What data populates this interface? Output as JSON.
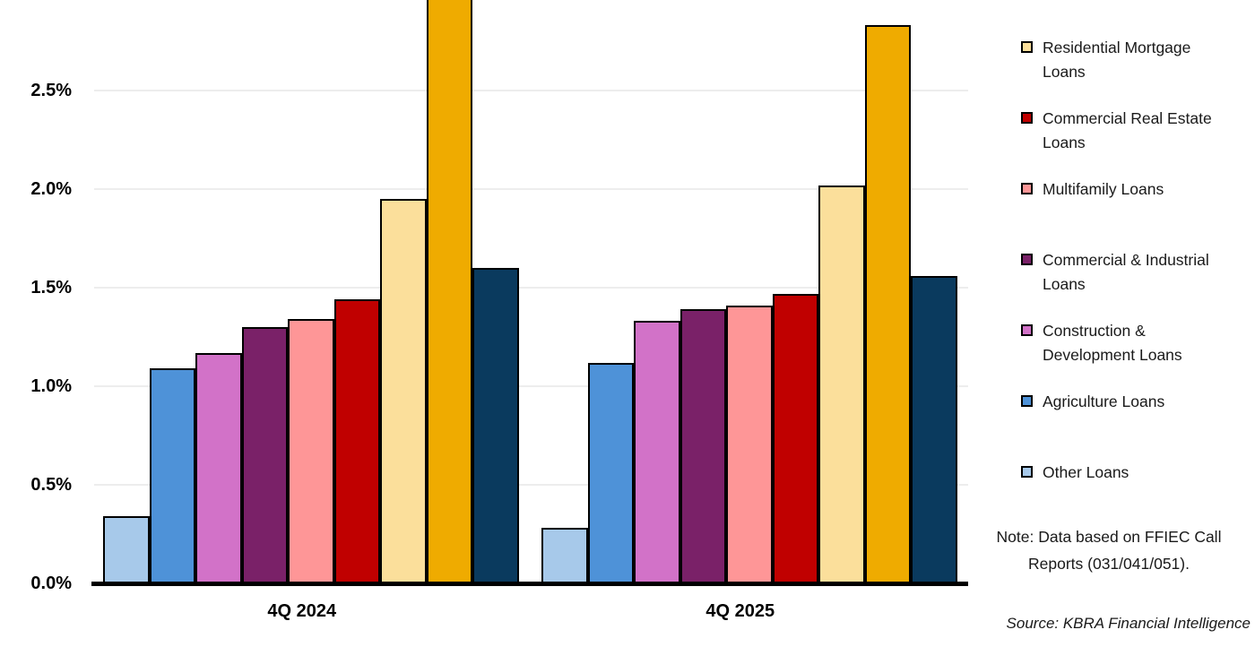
{
  "chart_data": {
    "type": "bar",
    "unit": "percent",
    "categories": [
      "4Q 2024",
      "4Q 2025"
    ],
    "series": [
      {
        "name": "Other Loans",
        "color": "#A7C9EA",
        "values": [
          0.34,
          0.28
        ]
      },
      {
        "name": "Agriculture Loans",
        "color": "#4E92D8",
        "values": [
          1.09,
          1.12
        ]
      },
      {
        "name": "Construction & Development Loans",
        "color": "#D272C8",
        "values": [
          1.17,
          1.33
        ]
      },
      {
        "name": "Commercial & Industrial Loans",
        "color": "#7A2168",
        "values": [
          1.3,
          1.39
        ]
      },
      {
        "name": "Multifamily Loans",
        "color": "#FE9697",
        "values": [
          1.34,
          1.41
        ]
      },
      {
        "name": "Commercial Real Estate Loans",
        "color": "#C00000",
        "values": [
          1.44,
          1.47
        ]
      },
      {
        "name": "Residential Mortgage Loans",
        "color": "#FBDF9B",
        "values": [
          1.95,
          2.02
        ]
      },
      {
        "name": "",
        "legend_label_visible": false,
        "color": "#EFAB00",
        "values": [
          2.96,
          2.83
        ],
        "clipped_at_image_top": [
          true,
          false
        ]
      },
      {
        "name": "",
        "legend_label_visible": false,
        "color": "#0A3A5E",
        "values": [
          1.6,
          1.56
        ]
      }
    ],
    "y_ticks": [
      "0.0%",
      "0.5%",
      "1.0%",
      "1.5%",
      "2.0%",
      "2.5%"
    ],
    "y_tick_values": [
      0.0,
      0.5,
      1.0,
      1.5,
      2.0,
      2.5
    ],
    "ylim_visible": [
      0,
      2.96
    ],
    "grid": true,
    "legend_position": "right"
  },
  "legend": {
    "items": [
      {
        "label": "Residential Mortgage Loans",
        "color": "#FBDF9B"
      },
      {
        "label": "Commercial Real Estate Loans",
        "color": "#C00000"
      },
      {
        "label": "Multifamily Loans",
        "color": "#FE9697"
      },
      {
        "label": "Commercial & Industrial Loans",
        "color": "#7A2168"
      },
      {
        "label": "Construction & Development Loans",
        "color": "#D272C8"
      },
      {
        "label": "Agriculture Loans",
        "color": "#4E92D8"
      },
      {
        "label": "Other Loans",
        "color": "#A7C9EA"
      }
    ]
  },
  "annotations": {
    "note": "Note: Data based on FFIEC Call Reports (031/041/051).",
    "source": "Source: KBRA Financial Intelligence"
  },
  "colors": {
    "axis": "#000000",
    "gridline": "#EDEDED",
    "bar_border": "#000000",
    "text": "#1A1A1A"
  }
}
